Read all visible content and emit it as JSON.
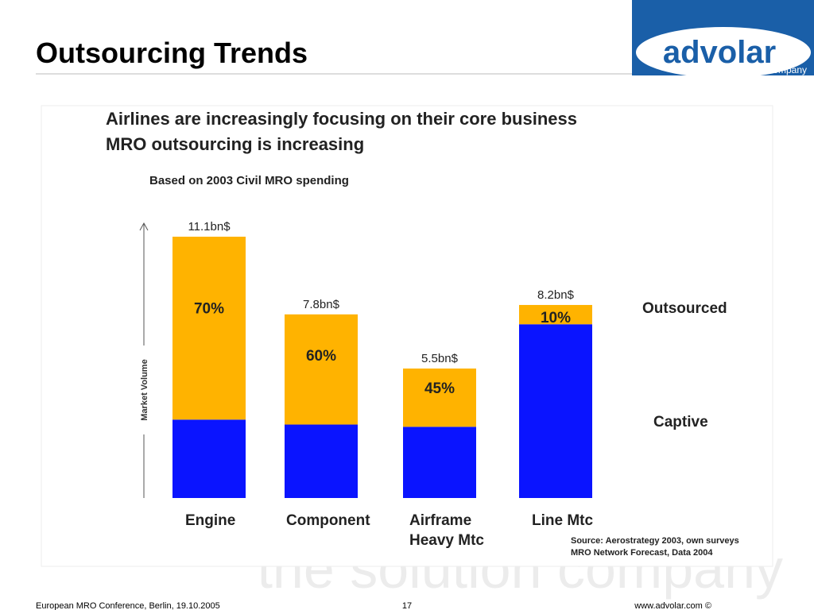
{
  "slide": {
    "title": "Outsourcing Trends",
    "logo": "advolar",
    "logo_tagline": "the solution company",
    "footer_left": "European MRO Conference, Berlin, 19.10.2005",
    "page_number": "17",
    "footer_right": "www.advolar.com ©"
  },
  "chart_data": {
    "type": "bar",
    "title": [
      "Airlines are increasingly focusing on their core business",
      "MRO outsourcing is increasing"
    ],
    "subtitle": "Based on 2003 Civil MRO spending",
    "y_label": "Market Volume",
    "categories": [
      "Engine",
      "Component",
      "Airframe Heavy Mtc",
      "Line Mtc"
    ],
    "totals": [
      11.1,
      7.8,
      5.5,
      8.2
    ],
    "total_labels": [
      "11.1bn$",
      "7.8bn$",
      "5.5bn$",
      "8.2bn$"
    ],
    "series": [
      {
        "name": "Outsourced",
        "color": "#ffb300",
        "values": [
          70,
          60,
          45,
          10
        ],
        "value_labels": [
          "70%",
          "60%",
          "45%",
          "10%"
        ]
      }
    ],
    "remainder": {
      "name": "Captive",
      "color": "#0a14ff"
    },
    "source": [
      "Source: Aerostrategy 2003, own surveys",
      "MRO Network Forecast, Data 2004"
    ]
  }
}
